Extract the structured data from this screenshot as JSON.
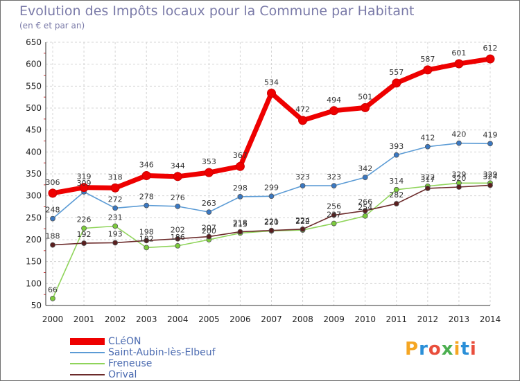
{
  "title": "Evolution des Impôts locaux pour la Commune par Habitant",
  "subtitle": "(en € et par an)",
  "logo": {
    "text": "Proxiti",
    "colors": [
      "#f5a623",
      "#2a8fd8",
      "#e94e3c",
      "#4caf50",
      "#f5a623",
      "#2a8fd8",
      "#e94e3c"
    ]
  },
  "chart_data": {
    "type": "line",
    "title": "Evolution des Impôts locaux pour la Commune par Habitant",
    "subtitle": "(en € et par an)",
    "x": [
      "2000",
      "2001",
      "2002",
      "2003",
      "2004",
      "2005",
      "2006",
      "2007",
      "2008",
      "2009",
      "2010",
      "2011",
      "2012",
      "2013",
      "2014"
    ],
    "ylim": [
      50,
      650
    ],
    "yticks": [
      50,
      100,
      150,
      200,
      250,
      300,
      350,
      400,
      450,
      500,
      550,
      600,
      650
    ],
    "grid": true,
    "legend_position": "bottom-left",
    "series": [
      {
        "name": "CLéON",
        "color": "#ee0000",
        "marker_color": "#ee0000",
        "bold": true,
        "values": [
          306,
          319,
          318,
          346,
          344,
          353,
          367,
          534,
          472,
          494,
          501,
          557,
          587,
          601,
          612
        ]
      },
      {
        "name": "Saint-Aubin-lès-Elbeuf",
        "color": "#5b9bd5",
        "marker_color": "#3a78c2",
        "bold": false,
        "values": [
          248,
          309,
          272,
          278,
          276,
          263,
          298,
          299,
          323,
          323,
          342,
          393,
          412,
          420,
          419
        ]
      },
      {
        "name": "Freneuse",
        "color": "#8fd45a",
        "marker_color": "#7ccc3c",
        "bold": false,
        "values": [
          66,
          226,
          231,
          182,
          186,
          200,
          215,
          220,
          222,
          237,
          254,
          314,
          322,
          329,
          329
        ]
      },
      {
        "name": "Orival",
        "color": "#6b2a2a",
        "marker_color": "#5a1f1f",
        "bold": false,
        "values": [
          188,
          192,
          193,
          198,
          202,
          207,
          218,
          221,
          224,
          256,
          266,
          282,
          317,
          320,
          324
        ]
      }
    ]
  }
}
